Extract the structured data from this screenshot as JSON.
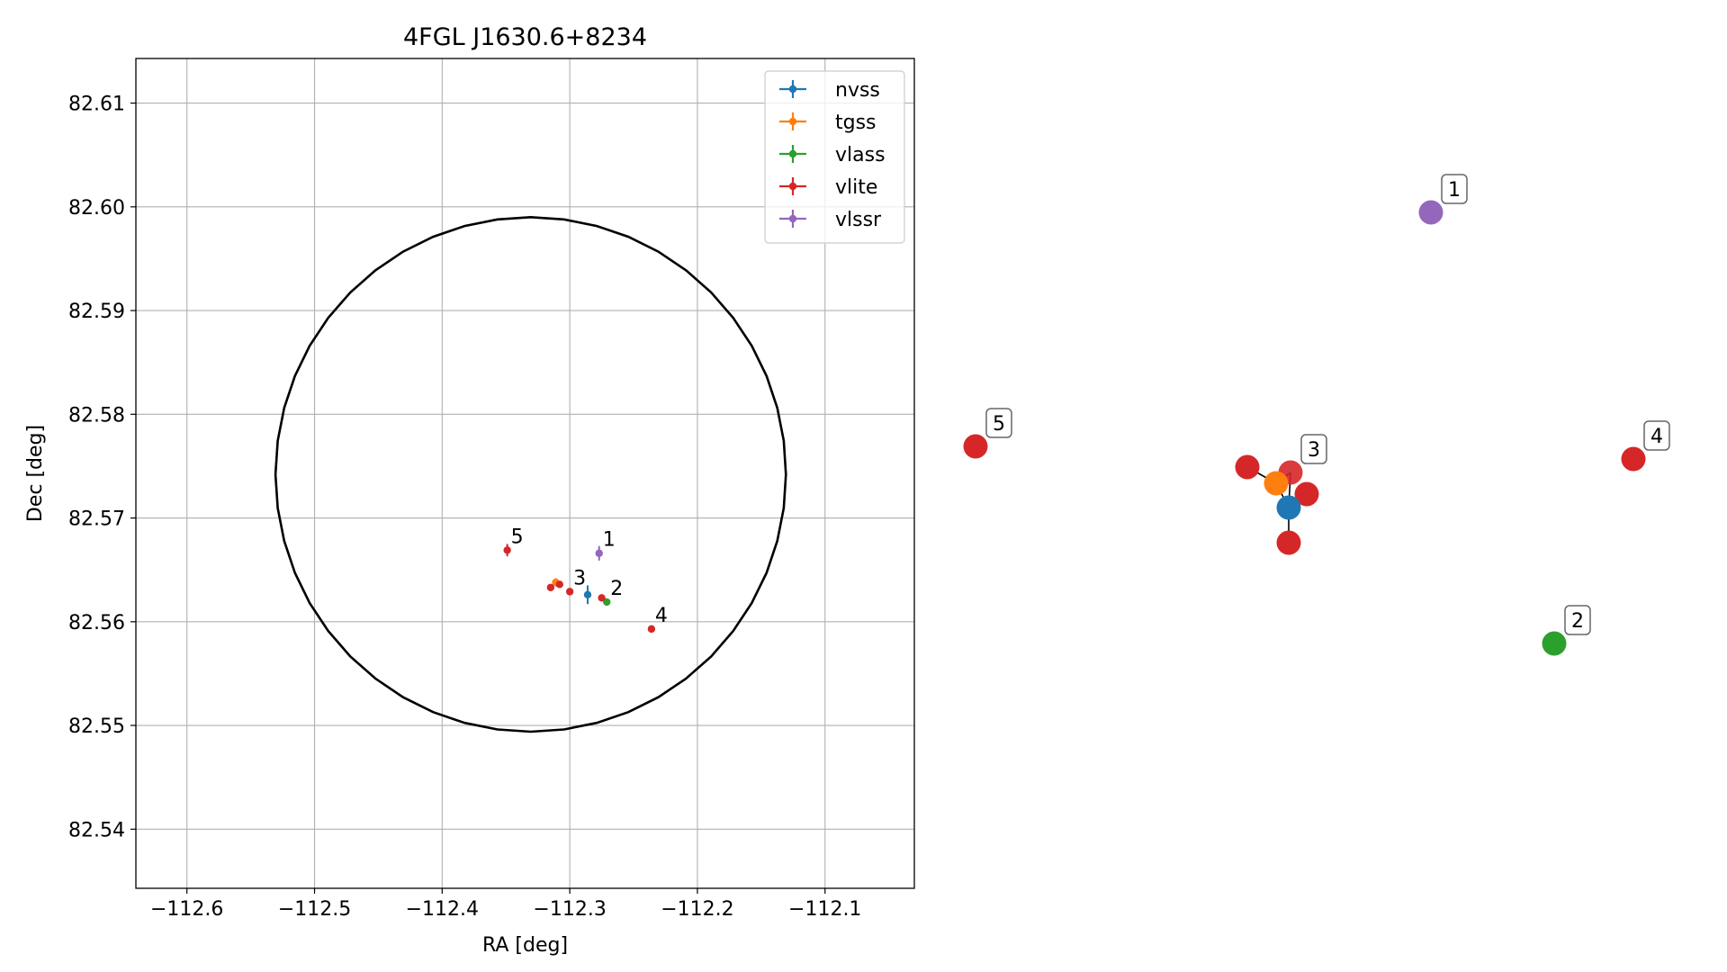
{
  "chart_data": [
    {
      "type": "scatter",
      "title": "4FGL J1630.6+8234",
      "xlabel": "RA [deg]",
      "ylabel": "Dec [deg]",
      "xlim": [
        -112.64,
        -112.03
      ],
      "ylim": [
        82.5343,
        82.6143
      ],
      "xticks": [
        -112.6,
        -112.5,
        -112.4,
        -112.3,
        -112.2,
        -112.1
      ],
      "xtick_labels": [
        "−112.6",
        "−112.5",
        "−112.4",
        "−112.3",
        "−112.2",
        "−112.1"
      ],
      "yticks": [
        82.54,
        82.55,
        82.56,
        82.57,
        82.58,
        82.59,
        82.6,
        82.61
      ],
      "ytick_labels": [
        "82.54",
        "82.55",
        "82.56",
        "82.57",
        "82.58",
        "82.59",
        "82.60",
        "82.61"
      ],
      "grid": true,
      "legend_position": "top-right",
      "ellipse": {
        "center": [
          -112.3306,
          82.5742
        ],
        "ra_halfwidth": 0.2,
        "dec_halfwidth": 0.0248
      },
      "series": [
        {
          "name": "nvss",
          "color": "#1f77b4",
          "points": [
            {
              "x": -112.286,
              "y": 82.5626,
              "yerr": 0.0009,
              "xerr": 0.0016
            }
          ]
        },
        {
          "name": "tgss",
          "color": "#ff7f0e",
          "points": [
            {
              "x": -112.311,
              "y": 82.5638,
              "yerr": 0.0004,
              "xerr": 0.0015
            }
          ]
        },
        {
          "name": "vlass",
          "color": "#2ca02c",
          "points": [
            {
              "x": -112.271,
              "y": 82.5619,
              "yerr": 0.0002,
              "xerr": 0.0006
            }
          ]
        },
        {
          "name": "vlite",
          "color": "#d62728",
          "points": [
            {
              "x": -112.349,
              "y": 82.5669,
              "yerr": 0.0006,
              "xerr": 0.0014
            },
            {
              "x": -112.315,
              "y": 82.5633,
              "yerr": 0.0002,
              "xerr": 0.0008
            },
            {
              "x": -112.308,
              "y": 82.5636,
              "yerr": 0.0002,
              "xerr": 0.0008
            },
            {
              "x": -112.3,
              "y": 82.5629,
              "yerr": 0.0002,
              "xerr": 0.0008
            },
            {
              "x": -112.275,
              "y": 82.5623,
              "yerr": 0.0002,
              "xerr": 0.0008
            },
            {
              "x": -112.236,
              "y": 82.5593,
              "yerr": 0.0002,
              "xerr": 0.0008
            }
          ]
        },
        {
          "name": "vlssr",
          "color": "#9467bd",
          "points": [
            {
              "x": -112.277,
              "y": 82.5666,
              "yerr": 0.0007,
              "xerr": 0.0015
            }
          ]
        }
      ],
      "annotations": [
        {
          "text": "1",
          "x": -112.277,
          "y": 82.5666
        },
        {
          "text": "2",
          "x": -112.271,
          "y": 82.5619
        },
        {
          "text": "3",
          "x": -112.3,
          "y": 82.5629
        },
        {
          "text": "4",
          "x": -112.236,
          "y": 82.5593
        },
        {
          "text": "5",
          "x": -112.349,
          "y": 82.5669
        }
      ]
    },
    {
      "type": "graph",
      "nodes": [
        {
          "id": "n1",
          "label": "1",
          "color": "#9467bd"
        },
        {
          "id": "n2",
          "label": "2",
          "color": "#2ca02c"
        },
        {
          "id": "n3",
          "label": "3",
          "color": "#d62728"
        },
        {
          "id": "n4",
          "label": "4",
          "color": "#d62728"
        },
        {
          "id": "n5",
          "label": "5",
          "color": "#d62728"
        },
        {
          "id": "vl_a",
          "label": "",
          "color": "#d62728"
        },
        {
          "id": "vl_b",
          "label": "",
          "color": "#d62728"
        },
        {
          "id": "vl_c",
          "label": "",
          "color": "#d62728"
        },
        {
          "id": "tg",
          "label": "",
          "color": "#ff7f0e"
        },
        {
          "id": "nv",
          "label": "",
          "color": "#1f77b4"
        }
      ],
      "edges": [
        [
          "vl_a",
          "tg"
        ],
        [
          "tg",
          "n3"
        ],
        [
          "n3",
          "nv"
        ],
        [
          "nv",
          "vl_c"
        ],
        [
          "nv",
          "vl_b"
        ],
        [
          "tg",
          "nv"
        ]
      ]
    }
  ]
}
